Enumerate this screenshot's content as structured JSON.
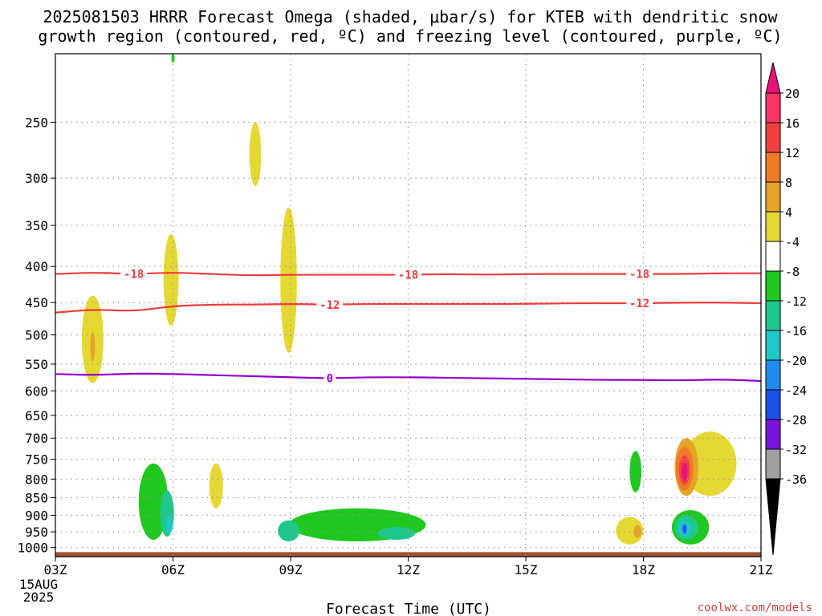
{
  "title_line1": "2025081503 HRRR Forecast Omega (shaded, μbar/s) for KTEB with dendritic snow",
  "title_line2": "growth region (contoured, red, ºC) and freezing level (contoured, purple, ºC)",
  "credit": "coolwx.com/models",
  "chart_data": {
    "type": "heatmap",
    "xlabel": "Forecast Time (UTC)",
    "x_ticks": [
      {
        "hour": 3,
        "label": "03Z"
      },
      {
        "hour": 6,
        "label": "06Z"
      },
      {
        "hour": 9,
        "label": "09Z"
      },
      {
        "hour": 12,
        "label": "12Z"
      },
      {
        "hour": 15,
        "label": "15Z"
      },
      {
        "hour": 18,
        "label": "18Z"
      },
      {
        "hour": 21,
        "label": "21Z"
      }
    ],
    "x_start_label_lines": [
      "15AUG",
      "2025"
    ],
    "xlim_hours": [
      3,
      21
    ],
    "y_ticks": [
      250,
      300,
      350,
      400,
      450,
      500,
      550,
      600,
      650,
      700,
      750,
      800,
      850,
      900,
      950,
      1000
    ],
    "y_unit": "hPa",
    "ylim_hpa": [
      1030,
      200
    ],
    "grid": true,
    "ground_level_hpa": 1015,
    "contours": [
      {
        "label": "-18",
        "color": "#ee3c3c",
        "label_at_hours": [
          5,
          12,
          17.9
        ],
        "points": [
          [
            3,
            410
          ],
          [
            4,
            408
          ],
          [
            5,
            410
          ],
          [
            6,
            408
          ],
          [
            7,
            410
          ],
          [
            8,
            412
          ],
          [
            9,
            411
          ],
          [
            10,
            411
          ],
          [
            11,
            411
          ],
          [
            12,
            411
          ],
          [
            13,
            410
          ],
          [
            14,
            411
          ],
          [
            15,
            410
          ],
          [
            16,
            410
          ],
          [
            17,
            410
          ],
          [
            18,
            410
          ],
          [
            19,
            410
          ],
          [
            20,
            409
          ],
          [
            21,
            409
          ]
        ]
      },
      {
        "label": "-12",
        "color": "#ee3c3c",
        "label_at_hours": [
          10,
          17.9
        ],
        "points": [
          [
            3,
            465
          ],
          [
            4,
            460
          ],
          [
            5,
            463
          ],
          [
            6,
            455
          ],
          [
            7,
            453
          ],
          [
            8,
            453
          ],
          [
            9,
            452
          ],
          [
            10,
            453
          ],
          [
            11,
            452
          ],
          [
            12,
            452
          ],
          [
            13,
            452
          ],
          [
            14,
            452
          ],
          [
            15,
            452
          ],
          [
            16,
            451
          ],
          [
            17,
            451
          ],
          [
            18,
            451
          ],
          [
            19,
            450
          ],
          [
            20,
            450
          ],
          [
            21,
            451
          ]
        ]
      },
      {
        "label": "0",
        "color": "#9400cc",
        "label_at_hours": [
          10
        ],
        "points": [
          [
            3,
            568
          ],
          [
            4,
            570
          ],
          [
            5,
            567
          ],
          [
            6,
            568
          ],
          [
            7,
            570
          ],
          [
            8,
            572
          ],
          [
            9,
            574
          ],
          [
            10,
            576
          ],
          [
            11,
            574
          ],
          [
            12,
            574
          ],
          [
            13,
            575
          ],
          [
            14,
            576
          ],
          [
            15,
            577
          ],
          [
            16,
            578
          ],
          [
            17,
            579
          ],
          [
            18,
            579
          ],
          [
            19,
            580
          ],
          [
            20,
            578
          ],
          [
            21,
            581
          ]
        ]
      }
    ],
    "omega_features": [
      {
        "level": "4",
        "center": [
          3.95,
          515
        ],
        "width_hours": 0.55,
        "top": 440,
        "bottom": 585
      },
      {
        "level": "8",
        "center": [
          3.95,
          515
        ],
        "width_hours": 0.12,
        "top": 495,
        "bottom": 545
      },
      {
        "level": "4",
        "center": [
          5.95,
          420
        ],
        "width_hours": 0.38,
        "top": 360,
        "bottom": 485
      },
      {
        "level": "4",
        "center": [
          8.1,
          278
        ],
        "width_hours": 0.3,
        "top": 250,
        "bottom": 308
      },
      {
        "level": "4",
        "center": [
          8.95,
          430
        ],
        "width_hours": 0.42,
        "top": 330,
        "bottom": 530
      },
      {
        "level": "4",
        "center": [
          7.1,
          820
        ],
        "width_hours": 0.35,
        "top": 760,
        "bottom": 880
      },
      {
        "level": "-4",
        "center": [
          5.5,
          880
        ],
        "width_hours": 0.75,
        "top": 760,
        "bottom": 975
      },
      {
        "level": "-8",
        "center": [
          5.85,
          920
        ],
        "width_hours": 0.35,
        "top": 830,
        "bottom": 965
      },
      {
        "level": "-12",
        "center": [
          5.9,
          935
        ],
        "width_hours": 0.15,
        "top": 900,
        "bottom": 955
      },
      {
        "level": "-4",
        "center": [
          10.7,
          945
        ],
        "width_hours": 3.5,
        "top": 880,
        "bottom": 980
      },
      {
        "level": "-8",
        "center": [
          8.95,
          948
        ],
        "width_hours": 0.55,
        "top": 915,
        "bottom": 980
      },
      {
        "level": "-8",
        "center": [
          11.7,
          955
        ],
        "width_hours": 0.95,
        "top": 935,
        "bottom": 975
      },
      {
        "level": "-4",
        "center": [
          17.8,
          785
        ],
        "width_hours": 0.3,
        "top": 730,
        "bottom": 835
      },
      {
        "level": "4",
        "center": [
          17.65,
          950
        ],
        "width_hours": 0.7,
        "top": 905,
        "bottom": 990
      },
      {
        "level": "8",
        "center": [
          17.85,
          950
        ],
        "width_hours": 0.2,
        "top": 930,
        "bottom": 970
      },
      {
        "level": "4",
        "center": [
          19.7,
          770
        ],
        "width_hours": 1.35,
        "top": 685,
        "bottom": 845
      },
      {
        "level": "8",
        "center": [
          19.1,
          770
        ],
        "width_hours": 0.6,
        "top": 700,
        "bottom": 845
      },
      {
        "level": "12",
        "center": [
          19.05,
          775
        ],
        "width_hours": 0.45,
        "top": 720,
        "bottom": 830
      },
      {
        "level": "16",
        "center": [
          19.05,
          780
        ],
        "width_hours": 0.28,
        "top": 740,
        "bottom": 815
      },
      {
        "level": "20",
        "center": [
          19.05,
          785
        ],
        "width_hours": 0.15,
        "top": 758,
        "bottom": 805
      },
      {
        "level": "-4",
        "center": [
          19.2,
          945
        ],
        "width_hours": 0.95,
        "top": 885,
        "bottom": 990
      },
      {
        "level": "-8",
        "center": [
          19.1,
          945
        ],
        "width_hours": 0.6,
        "top": 900,
        "bottom": 975
      },
      {
        "level": "-12",
        "center": [
          19.05,
          945
        ],
        "width_hours": 0.3,
        "top": 915,
        "bottom": 965
      },
      {
        "level": "-16",
        "center": [
          19.05,
          945
        ],
        "width_hours": 0.14,
        "top": 925,
        "bottom": 958
      },
      {
        "level": "-20",
        "center": [
          19.05,
          942
        ],
        "width_hours": 0.05,
        "top": 930,
        "bottom": 952
      },
      {
        "level": "-4",
        "center": [
          6.0,
          203
        ],
        "width_hours": 0.03,
        "top": 200,
        "bottom": 206
      }
    ],
    "colorbar": {
      "labels": [
        "20",
        "16",
        "12",
        "8",
        "4",
        "-4",
        "-8",
        "-12",
        "-16",
        "-20",
        "-24",
        "-28",
        "-32",
        "-36"
      ],
      "colors": [
        "#ff3366",
        "#f24040",
        "#f07a28",
        "#e6a428",
        "#e6d832",
        "#ffffff",
        "#1ec81e",
        "#1ec88c",
        "#1ec8c8",
        "#1e8cf0",
        "#1e50f0",
        "#7a14dc",
        "#aa14c8",
        "#a0a0a0"
      ],
      "top_color": "#e6147a",
      "bottom_color": "#000000",
      "level_colors": {
        "4": "#e6d832",
        "8": "#e6a428",
        "12": "#f07a28",
        "16": "#f24040",
        "20": "#e6147a",
        "-4": "#1ec81e",
        "-8": "#1ec88c",
        "-12": "#1ec8c8",
        "-16": "#1e8cf0",
        "-20": "#1e50f0"
      }
    }
  }
}
